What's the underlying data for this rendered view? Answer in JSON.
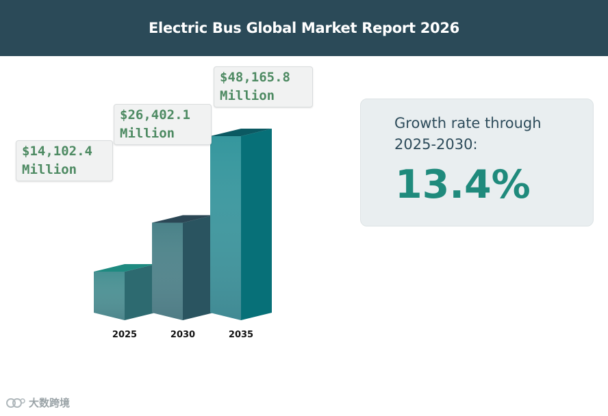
{
  "header": {
    "title": "Electric Bus Global Market Report 2026"
  },
  "chart_data": {
    "type": "bar",
    "categories": [
      "2025",
      "2030",
      "2035"
    ],
    "values": [
      14102.4,
      26402.1,
      48165.8
    ],
    "value_labels": [
      {
        "amount": "$14,102.4",
        "unit": "Million"
      },
      {
        "amount": "$26,402.1",
        "unit": "Million"
      },
      {
        "amount": "$48,165.8",
        "unit": "Million"
      }
    ],
    "colors": [
      {
        "front": "#3d8a8c",
        "side": "#2d6a70",
        "top": "#1e8a80"
      },
      {
        "front": "#407b82",
        "side": "#2a5460",
        "top": "#2b4755"
      },
      {
        "front": "#2a9198",
        "side": "#077078",
        "top": "#0b5962"
      }
    ],
    "xlabel": "",
    "ylabel": ""
  },
  "growth": {
    "label": "Growth rate through 2025-2030:",
    "value": "13.4%"
  },
  "watermark": {
    "text": "大数跨境"
  }
}
